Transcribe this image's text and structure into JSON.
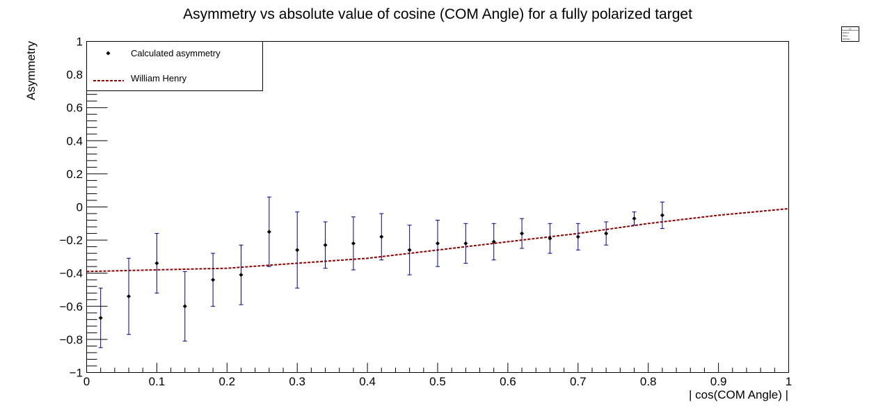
{
  "chart_data": {
    "type": "scatter",
    "title": "Asymmetry vs absolute value of cosine (COM Angle) for a fully polarized target",
    "xlabel": "| cos(COM Angle) |",
    "ylabel": "Asymmetry",
    "xlim": [
      0,
      1
    ],
    "ylim": [
      -1,
      1
    ],
    "x_ticks": [
      "0",
      "0.1",
      "0.2",
      "0.3",
      "0.4",
      "0.5",
      "0.6",
      "0.7",
      "0.8",
      "0.9",
      "1"
    ],
    "y_ticks": [
      "−1",
      "−0.8",
      "−0.6",
      "−0.4",
      "−0.2",
      "0",
      "0.2",
      "0.4",
      "0.6",
      "0.8",
      "1"
    ],
    "grid": false,
    "legend_position": "top-left",
    "series": [
      {
        "name": "Calculated asymmetry",
        "kind": "points_with_error_bars",
        "marker_color": "#000000",
        "error_color": "#000080",
        "x": [
          0.02,
          0.06,
          0.1,
          0.14,
          0.18,
          0.22,
          0.26,
          0.3,
          0.34,
          0.38,
          0.42,
          0.46,
          0.5,
          0.54,
          0.58,
          0.62,
          0.66,
          0.7,
          0.74,
          0.78,
          0.82
        ],
        "y": [
          -0.67,
          -0.54,
          -0.34,
          -0.6,
          -0.44,
          -0.41,
          -0.15,
          -0.26,
          -0.23,
          -0.22,
          -0.18,
          -0.26,
          -0.22,
          -0.22,
          -0.21,
          -0.16,
          -0.19,
          -0.18,
          -0.16,
          -0.07,
          -0.05
        ],
        "y_err": [
          0.18,
          0.23,
          0.18,
          0.21,
          0.16,
          0.18,
          0.21,
          0.23,
          0.14,
          0.16,
          0.14,
          0.15,
          0.14,
          0.12,
          0.11,
          0.09,
          0.09,
          0.08,
          0.07,
          0.04,
          0.08
        ]
      },
      {
        "name": "William Henry",
        "kind": "dashed_line",
        "color": "#8b0000",
        "x": [
          0.0,
          0.1,
          0.2,
          0.3,
          0.4,
          0.5,
          0.6,
          0.7,
          0.8,
          0.9,
          1.0
        ],
        "y": [
          -0.39,
          -0.38,
          -0.37,
          -0.34,
          -0.31,
          -0.26,
          -0.21,
          -0.16,
          -0.1,
          -0.05,
          -0.01
        ]
      }
    ],
    "stats_box": [
      "h1",
      "Entries",
      "Mean",
      "Std Dev"
    ]
  }
}
